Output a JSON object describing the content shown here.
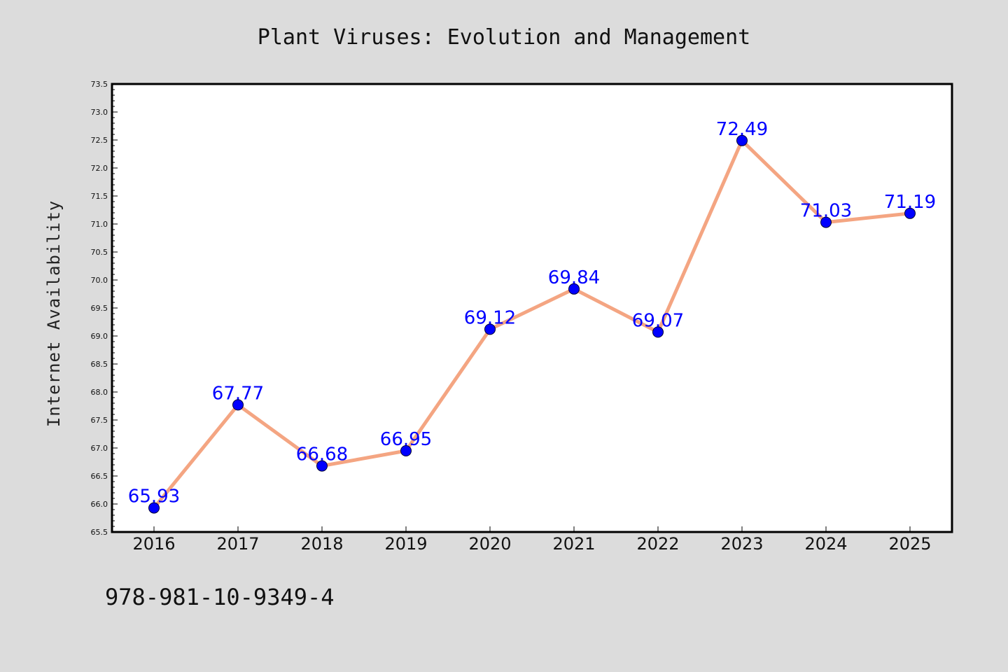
{
  "chart_data": {
    "type": "line",
    "title": "Plant Viruses: Evolution and Management",
    "xlabel": "",
    "ylabel": "Internet Availability",
    "categories": [
      "2016",
      "2017",
      "2018",
      "2019",
      "2020",
      "2021",
      "2022",
      "2023",
      "2024",
      "2025"
    ],
    "series": [
      {
        "values": [
          65.93,
          67.77,
          66.68,
          66.95,
          69.12,
          69.84,
          69.07,
          72.49,
          71.03,
          71.19
        ],
        "data_labels": [
          "65.93",
          "67.77",
          "66.68",
          "66.95",
          "69.12",
          "69.84",
          "69.07",
          "72.49",
          "71.03",
          "71.19"
        ],
        "line_color": "#f4a582",
        "marker_color": "#0000ff"
      }
    ],
    "ylim": [
      65.5,
      73.5
    ],
    "yticks": [
      "65.5",
      "66.0",
      "66.5",
      "67.0",
      "67.5",
      "68.0",
      "68.5",
      "69.0",
      "69.5",
      "70.0",
      "70.5",
      "71.0",
      "71.5",
      "72.0",
      "72.5",
      "73.0",
      "73.5"
    ],
    "grid": false,
    "legend": "none",
    "label_color": "#0000ff",
    "background_color": "#dcdcdc",
    "plot_background": "#ffffff"
  },
  "footer": {
    "isbn": "978-981-10-9349-4"
  }
}
